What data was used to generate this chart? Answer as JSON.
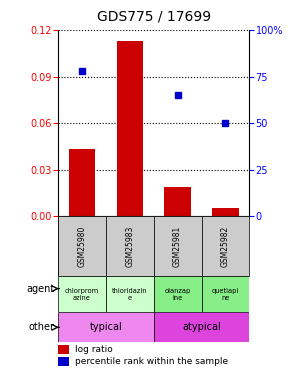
{
  "title": "GDS775 / 17699",
  "samples": [
    "GSM25980",
    "GSM25983",
    "GSM25981",
    "GSM25982"
  ],
  "log_ratio": [
    0.043,
    0.113,
    0.019,
    0.005
  ],
  "percentile_rank_pct": [
    78,
    null,
    65,
    50
  ],
  "bar_color": "#cc0000",
  "dot_color": "#0000cc",
  "ylim_left": [
    0,
    0.12
  ],
  "ylim_right": [
    0,
    100
  ],
  "yticks_left": [
    0,
    0.03,
    0.06,
    0.09,
    0.12
  ],
  "yticks_right": [
    0,
    25,
    50,
    75,
    100
  ],
  "agent_labels": [
    "chlorprom\nazine",
    "thioridazin\ne",
    "olanzap\nine",
    "quetiapi\nne"
  ],
  "agent_colors": [
    "#ccffcc",
    "#ccffcc",
    "#88ee88",
    "#88ee88"
  ],
  "other_colors": [
    "#ee88ee",
    "#dd44dd"
  ],
  "legend_red": "log ratio",
  "legend_blue": "percentile rank within the sample",
  "tick_fontsize": 7,
  "title_fontsize": 10,
  "bar_width": 0.55
}
